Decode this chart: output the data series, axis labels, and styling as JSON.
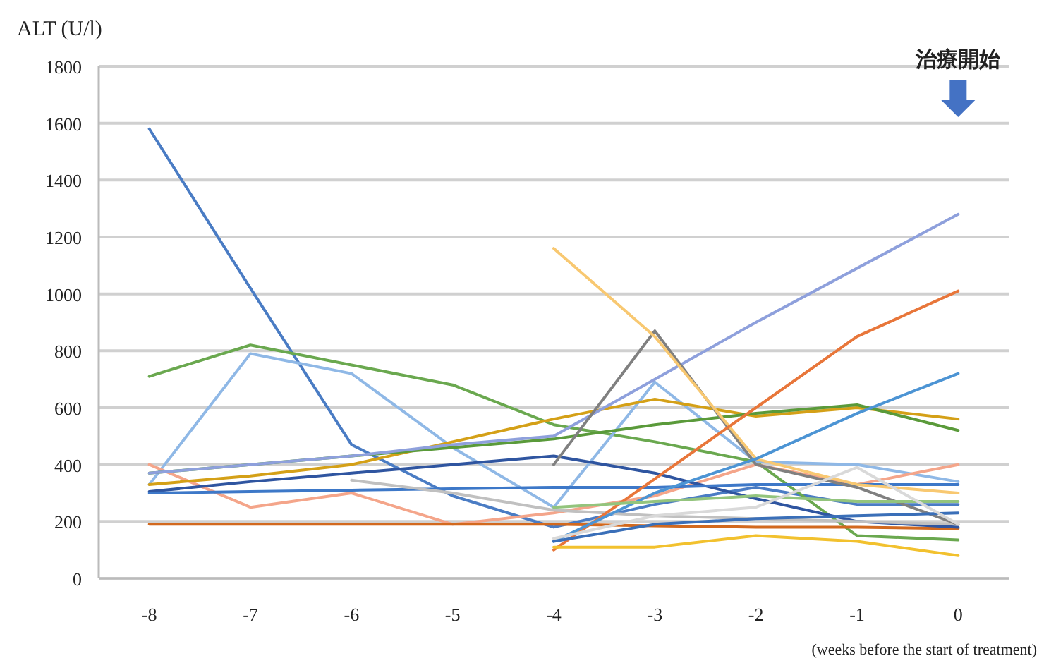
{
  "chart_data": {
    "type": "line",
    "ylabel": "ALT (U/l)",
    "xlabel": "(weeks before the start of treatment)",
    "x": [
      -8,
      -7,
      -6,
      -5,
      -4,
      -3,
      -2,
      -1,
      0
    ],
    "xlim": [
      -8.5,
      0.5
    ],
    "xticks": [
      -8,
      -7,
      -6,
      -5,
      -4,
      -3,
      -2,
      -1,
      0
    ],
    "ylim": [
      0,
      1800
    ],
    "yticks": [
      0,
      200,
      400,
      600,
      800,
      1000,
      1200,
      1400,
      1600,
      1800
    ],
    "grid": "y",
    "annotations": [
      "治療開始"
    ],
    "series": [
      {
        "color": "#4a7cc4",
        "values": [
          1580,
          1020,
          470,
          290,
          180,
          260,
          320,
          260,
          260
        ]
      },
      {
        "color": "#6aa84f",
        "values": [
          710,
          820,
          750,
          680,
          540,
          480,
          410,
          150,
          135
        ]
      },
      {
        "color": "#8fb8e6",
        "values": [
          330,
          790,
          720,
          460,
          250,
          690,
          410,
          400,
          340
        ]
      },
      {
        "color": "#f4a58a",
        "values": [
          400,
          250,
          300,
          190,
          230,
          290,
          400,
          330,
          400
        ]
      },
      {
        "color": "#d2691e",
        "values": [
          190,
          190,
          190,
          190,
          190,
          185,
          180,
          180,
          175
        ]
      },
      {
        "color": "#d4a017",
        "values": [
          330,
          360,
          400,
          480,
          560,
          630,
          570,
          600,
          560
        ]
      },
      {
        "color": "#5a9a3a",
        "values": [
          370,
          400,
          430,
          460,
          490,
          540,
          580,
          610,
          520
        ]
      },
      {
        "color": "#8ea0dc",
        "values": [
          370,
          400,
          430,
          470,
          500,
          700,
          900,
          1090,
          1280
        ]
      },
      {
        "color": "#2f55a0",
        "values": [
          305,
          340,
          370,
          400,
          430,
          370,
          280,
          200,
          180
        ]
      },
      {
        "color": "#3d78c8",
        "values": [
          300,
          305,
          310,
          315,
          320,
          320,
          330,
          330,
          330
        ]
      },
      {
        "color": "#c0c0c0",
        "values": [
          null,
          null,
          345,
          300,
          240,
          220,
          210,
          200,
          190
        ]
      },
      {
        "color": "#808080",
        "values": [
          null,
          null,
          null,
          null,
          400,
          870,
          400,
          320,
          190
        ]
      },
      {
        "color": "#f8c871",
        "values": [
          null,
          null,
          null,
          null,
          1160,
          850,
          420,
          330,
          300
        ]
      },
      {
        "color": "#e8763a",
        "values": [
          null,
          null,
          null,
          null,
          100,
          350,
          600,
          850,
          1010
        ]
      },
      {
        "color": "#4c94d4",
        "values": [
          null,
          null,
          null,
          null,
          130,
          300,
          420,
          580,
          720
        ]
      },
      {
        "color": "#f2c12e",
        "values": [
          null,
          null,
          null,
          null,
          110,
          110,
          150,
          130,
          80
        ]
      },
      {
        "color": "#93c47d",
        "values": [
          null,
          null,
          null,
          null,
          250,
          270,
          290,
          270,
          270
        ]
      },
      {
        "color": "#3a6fb8",
        "values": [
          null,
          null,
          null,
          null,
          130,
          190,
          210,
          220,
          230
        ]
      },
      {
        "color": "#d9d9d9",
        "values": [
          null,
          null,
          null,
          null,
          140,
          220,
          250,
          390,
          190
        ]
      }
    ]
  }
}
